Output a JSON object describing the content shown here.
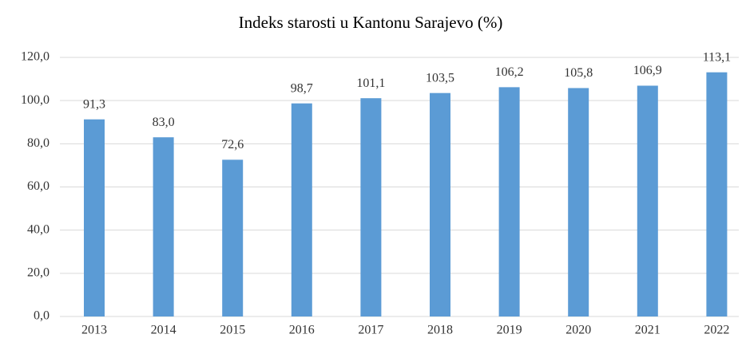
{
  "chart_data": {
    "type": "bar",
    "title": "Indeks starosti u Kantonu Sarajevo (%)",
    "categories": [
      "2013",
      "2014",
      "2015",
      "2016",
      "2017",
      "2018",
      "2019",
      "2020",
      "2021",
      "2022"
    ],
    "values": [
      91.3,
      83.0,
      72.6,
      98.7,
      101.1,
      103.5,
      106.2,
      105.8,
      106.9,
      113.1
    ],
    "value_labels": [
      "91,3",
      "83,0",
      "72,6",
      "98,7",
      "101,1",
      "103,5",
      "106,2",
      "105,8",
      "106,9",
      "113,1"
    ],
    "color": "#5b9bd5",
    "ylim": [
      0,
      120
    ],
    "yticks": [
      {
        "value": 0,
        "label": "0,0"
      },
      {
        "value": 20,
        "label": "20,0"
      },
      {
        "value": 40,
        "label": "40,0"
      },
      {
        "value": 60,
        "label": "60,0"
      },
      {
        "value": 80,
        "label": "80,0"
      },
      {
        "value": 100,
        "label": "100,0"
      },
      {
        "value": 120,
        "label": "120,0"
      }
    ],
    "grid": true
  }
}
